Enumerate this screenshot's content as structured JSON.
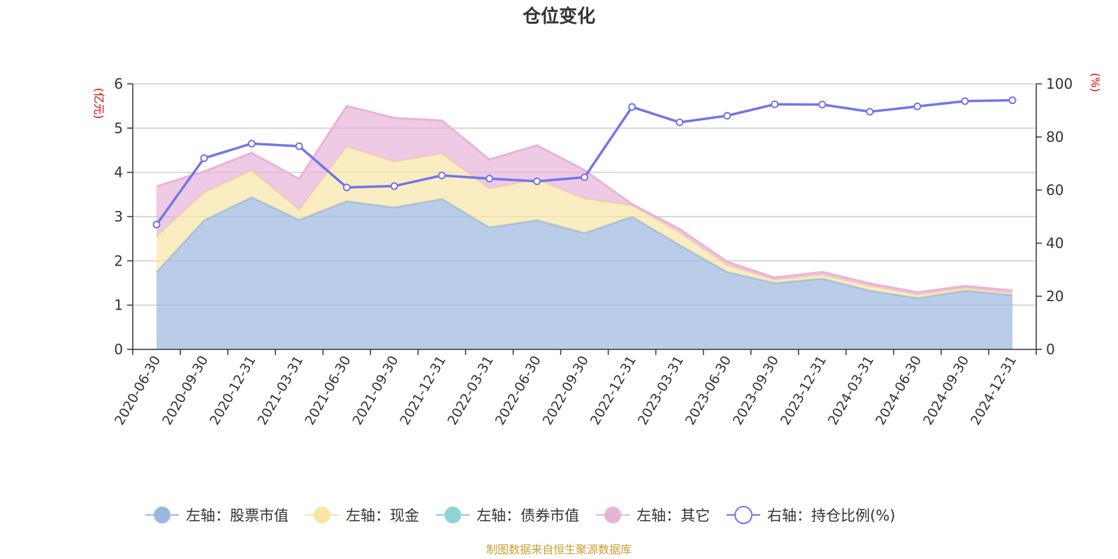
{
  "chart_data": {
    "type": "area",
    "title": "仓位变化",
    "left_axis_unit": "(亿元)",
    "right_axis_unit": "(%)",
    "ylim_left": [
      0,
      6
    ],
    "ylim_right": [
      0,
      100
    ],
    "yticks_left": [
      "0",
      "1",
      "2",
      "3",
      "4",
      "5",
      "6"
    ],
    "yticks_right": [
      "0",
      "20",
      "40",
      "60",
      "80",
      "100"
    ],
    "categories": [
      "2020-06-30",
      "2020-09-30",
      "2020-12-31",
      "2021-03-31",
      "2021-06-30",
      "2021-09-30",
      "2021-12-31",
      "2022-03-31",
      "2022-06-30",
      "2022-09-30",
      "2022-12-31",
      "2023-03-31",
      "2023-06-30",
      "2023-09-30",
      "2023-12-31",
      "2024-03-31",
      "2024-06-30",
      "2024-09-30",
      "2024-12-31"
    ],
    "series": [
      {
        "name": "左轴：股票市值",
        "axis": "left",
        "stacked": true,
        "color": "#9bb8e0",
        "values": [
          1.75,
          2.92,
          3.44,
          2.93,
          3.35,
          3.21,
          3.4,
          2.76,
          2.92,
          2.63,
          3.0,
          2.36,
          1.75,
          1.5,
          1.6,
          1.33,
          1.16,
          1.33,
          1.23
        ]
      },
      {
        "name": "左轴：现金",
        "axis": "left",
        "stacked": true,
        "color": "#f7e6a6",
        "values": [
          0.8,
          0.62,
          0.6,
          0.22,
          1.23,
          1.03,
          1.02,
          0.87,
          0.92,
          0.77,
          0.25,
          0.27,
          0.15,
          0.07,
          0.08,
          0.1,
          0.07,
          0.05,
          0.04
        ]
      },
      {
        "name": "左轴：债券市值",
        "axis": "left",
        "stacked": true,
        "color": "#8fd3d3",
        "values": [
          0,
          0,
          0,
          0,
          0,
          0,
          0,
          0,
          0,
          0,
          0,
          0,
          0,
          0,
          0,
          0,
          0,
          0,
          0
        ]
      },
      {
        "name": "左轴：其它",
        "axis": "left",
        "stacked": true,
        "color": "#e8b3d9",
        "values": [
          1.13,
          0.48,
          0.4,
          0.7,
          0.92,
          0.99,
          0.75,
          0.66,
          0.77,
          0.65,
          0.03,
          0.09,
          0.08,
          0.05,
          0.07,
          0.06,
          0.06,
          0.05,
          0.06
        ]
      },
      {
        "name": "右轴：持仓比例(%)",
        "axis": "right",
        "type": "line",
        "color": "#7375e8",
        "values": [
          47.0,
          72.0,
          77.5,
          76.5,
          61.0,
          61.5,
          65.5,
          64.3,
          63.3,
          64.8,
          91.3,
          85.5,
          88.0,
          92.3,
          92.2,
          89.5,
          91.5,
          93.5,
          93.8
        ]
      }
    ],
    "legend_position": "bottom",
    "source_note": "制图数据来自恒生聚源数据库"
  }
}
